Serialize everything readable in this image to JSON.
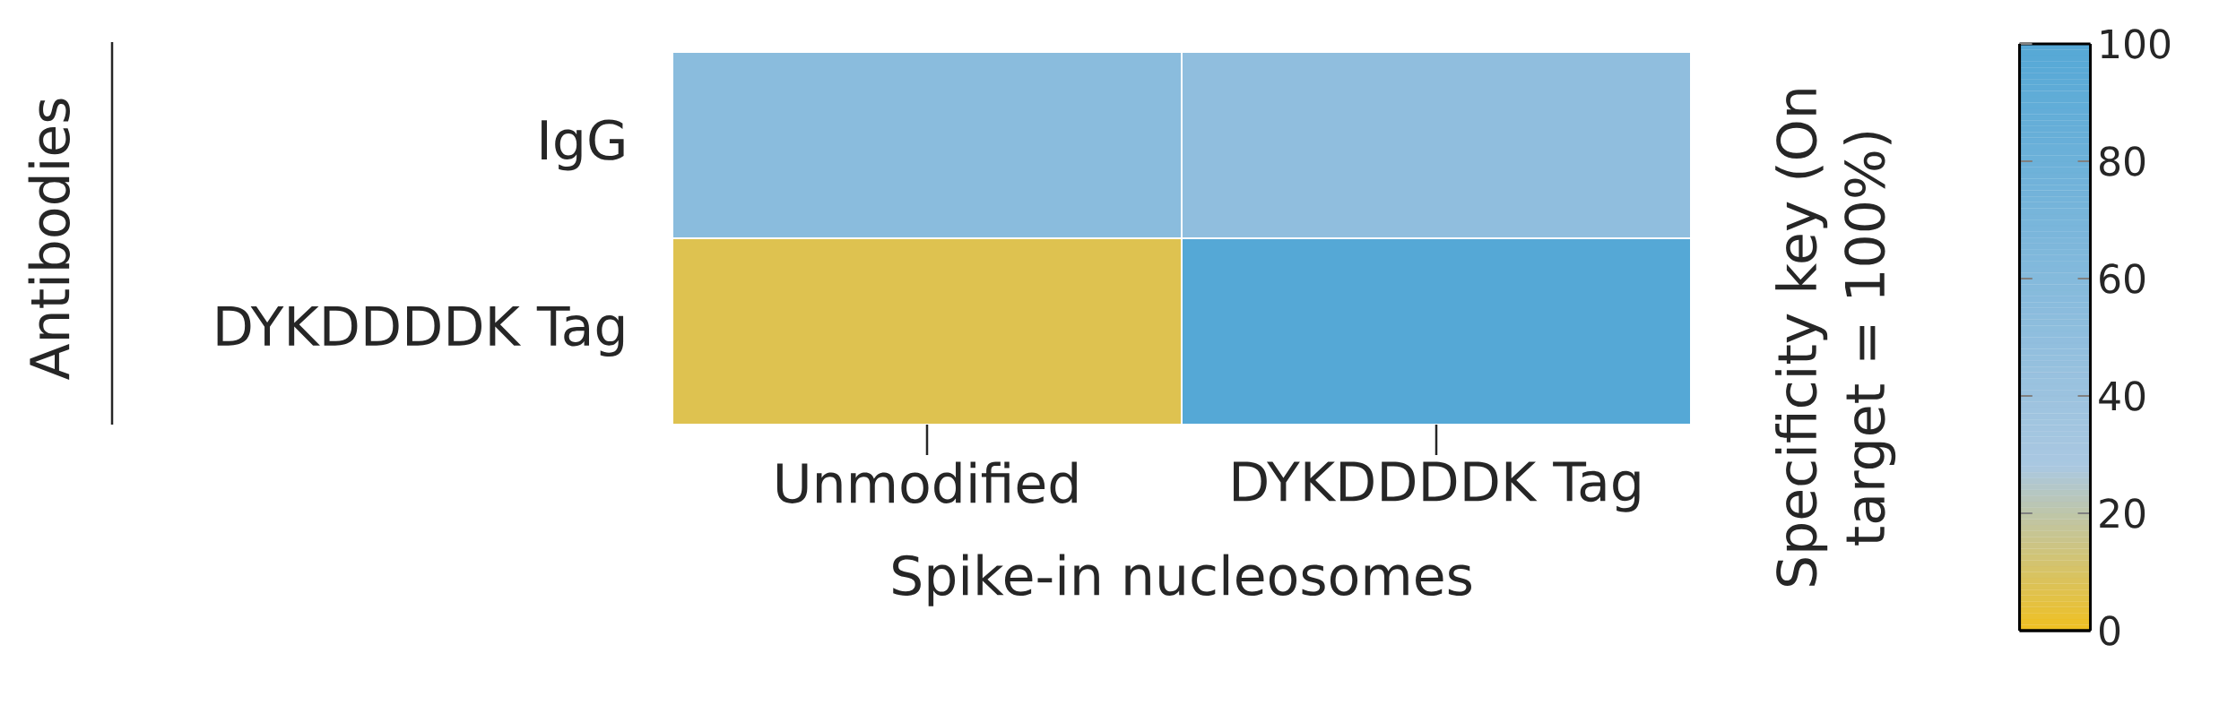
{
  "chart_data": {
    "type": "heatmap",
    "xlabel": "Spike-in nucleosomes",
    "ylabel": "Antibodies",
    "clabel": "Specificity key (On target = 100%)",
    "categories": [
      "Unmodified",
      "DYKDDDDK Tag"
    ],
    "y_categories": [
      "IgG",
      "DYKDDDDK Tag"
    ],
    "cells": [
      [
        55,
        50
      ],
      [
        7,
        100
      ]
    ],
    "clim": [
      0,
      100
    ],
    "cticks": [
      0,
      20,
      40,
      60,
      80,
      100
    ]
  }
}
